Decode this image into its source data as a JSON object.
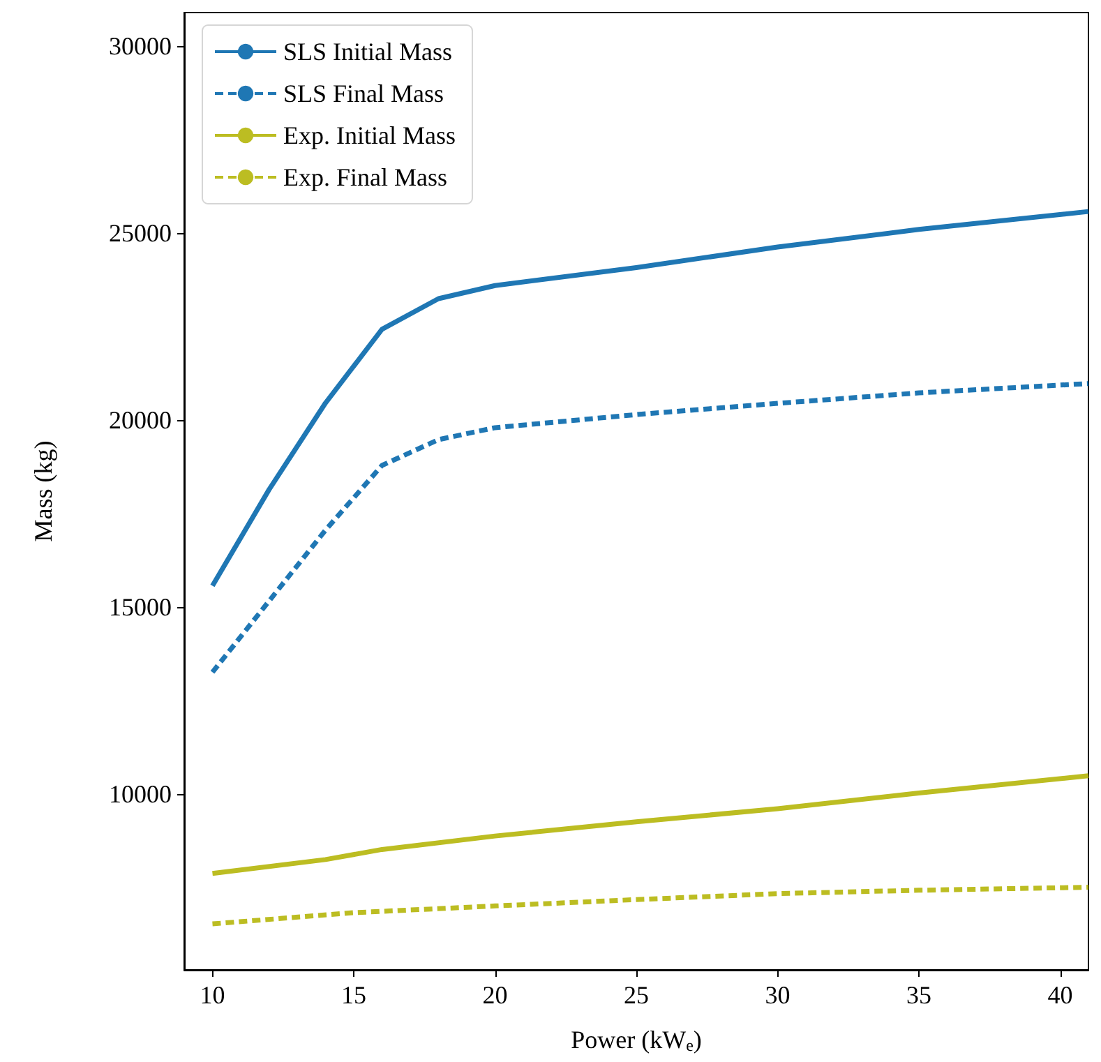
{
  "chart_data": {
    "type": "line",
    "xlabel": "Power (kW$_{e}$)",
    "ylabel": "Mass (kg)",
    "xlim": [
      9,
      41
    ],
    "xticks": [
      10,
      15,
      20,
      25,
      30,
      35,
      40
    ],
    "ylim": [
      5300,
      30900
    ],
    "yticks": [
      10000,
      15000,
      20000,
      25000,
      30000
    ],
    "legend": "top left",
    "grid": false,
    "marker": "none",
    "series": [
      {
        "name": "SLS Initial Mass",
        "color": "#1f77b4",
        "line_style": "solid",
        "x": [
          10,
          12,
          14,
          16,
          18,
          20,
          25,
          30,
          35,
          41
        ],
        "values": [
          15570,
          18140,
          20460,
          22430,
          23250,
          23600,
          24080,
          24630,
          25100,
          25580
        ]
      },
      {
        "name": "SLS Final Mass",
        "color": "#1f77b4",
        "line_style": "dashed",
        "x": [
          10,
          14,
          16,
          18,
          20,
          25,
          30,
          35,
          41
        ],
        "values": [
          13260,
          17060,
          18790,
          19480,
          19800,
          20150,
          20450,
          20730,
          20980
        ]
      },
      {
        "name": "Exp. Initial Mass",
        "color": "#bcbd22",
        "line_style": "solid",
        "x": [
          10,
          14,
          16,
          20,
          25,
          30,
          35,
          41
        ],
        "values": [
          7880,
          8250,
          8520,
          8880,
          9260,
          9610,
          10030,
          10490
        ]
      },
      {
        "name": "Exp. Final Mass",
        "color": "#bcbd22",
        "line_style": "dashed",
        "x": [
          10,
          15,
          20,
          25,
          30,
          35,
          41
        ],
        "values": [
          6530,
          6830,
          7010,
          7180,
          7340,
          7430,
          7510
        ]
      }
    ]
  }
}
